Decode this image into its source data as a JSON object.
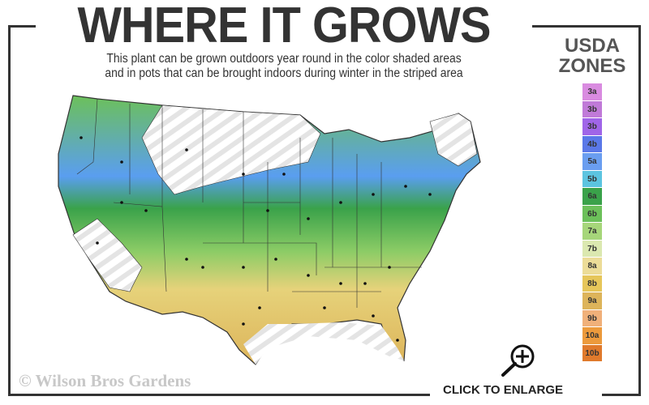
{
  "header": {
    "title": "WHERE IT GROWS",
    "subtitle_line1": "This plant can be grown outdoors year round in the color shaded areas",
    "subtitle_line2": "and in pots that can be brought indoors during winter in the striped area"
  },
  "legend": {
    "title_line1": "USDA",
    "title_line2": "ZONES",
    "zones": [
      {
        "label": "3a",
        "color": "#d98be0"
      },
      {
        "label": "3b",
        "color": "#c07ad8"
      },
      {
        "label": "3b",
        "color": "#a065e8"
      },
      {
        "label": "4b",
        "color": "#5a78e8"
      },
      {
        "label": "5a",
        "color": "#6a9ef0"
      },
      {
        "label": "5b",
        "color": "#5cc4e0"
      },
      {
        "label": "6a",
        "color": "#3aa24a"
      },
      {
        "label": "6b",
        "color": "#6cc05a"
      },
      {
        "label": "7a",
        "color": "#a6d67a"
      },
      {
        "label": "7b",
        "color": "#dbe8b0"
      },
      {
        "label": "8a",
        "color": "#ecdc98"
      },
      {
        "label": "8b",
        "color": "#e6c65a"
      },
      {
        "label": "9a",
        "color": "#ddb45a"
      },
      {
        "label": "9b",
        "color": "#f0b07a"
      },
      {
        "label": "10a",
        "color": "#ec9a3c"
      },
      {
        "label": "10b",
        "color": "#e07a2c"
      }
    ]
  },
  "footer": {
    "copyright": "© Wilson Bros Gardens",
    "enlarge_label": "CLICK TO ENLARGE",
    "enlarge_icon": "zoom-in-magnifier-icon"
  }
}
